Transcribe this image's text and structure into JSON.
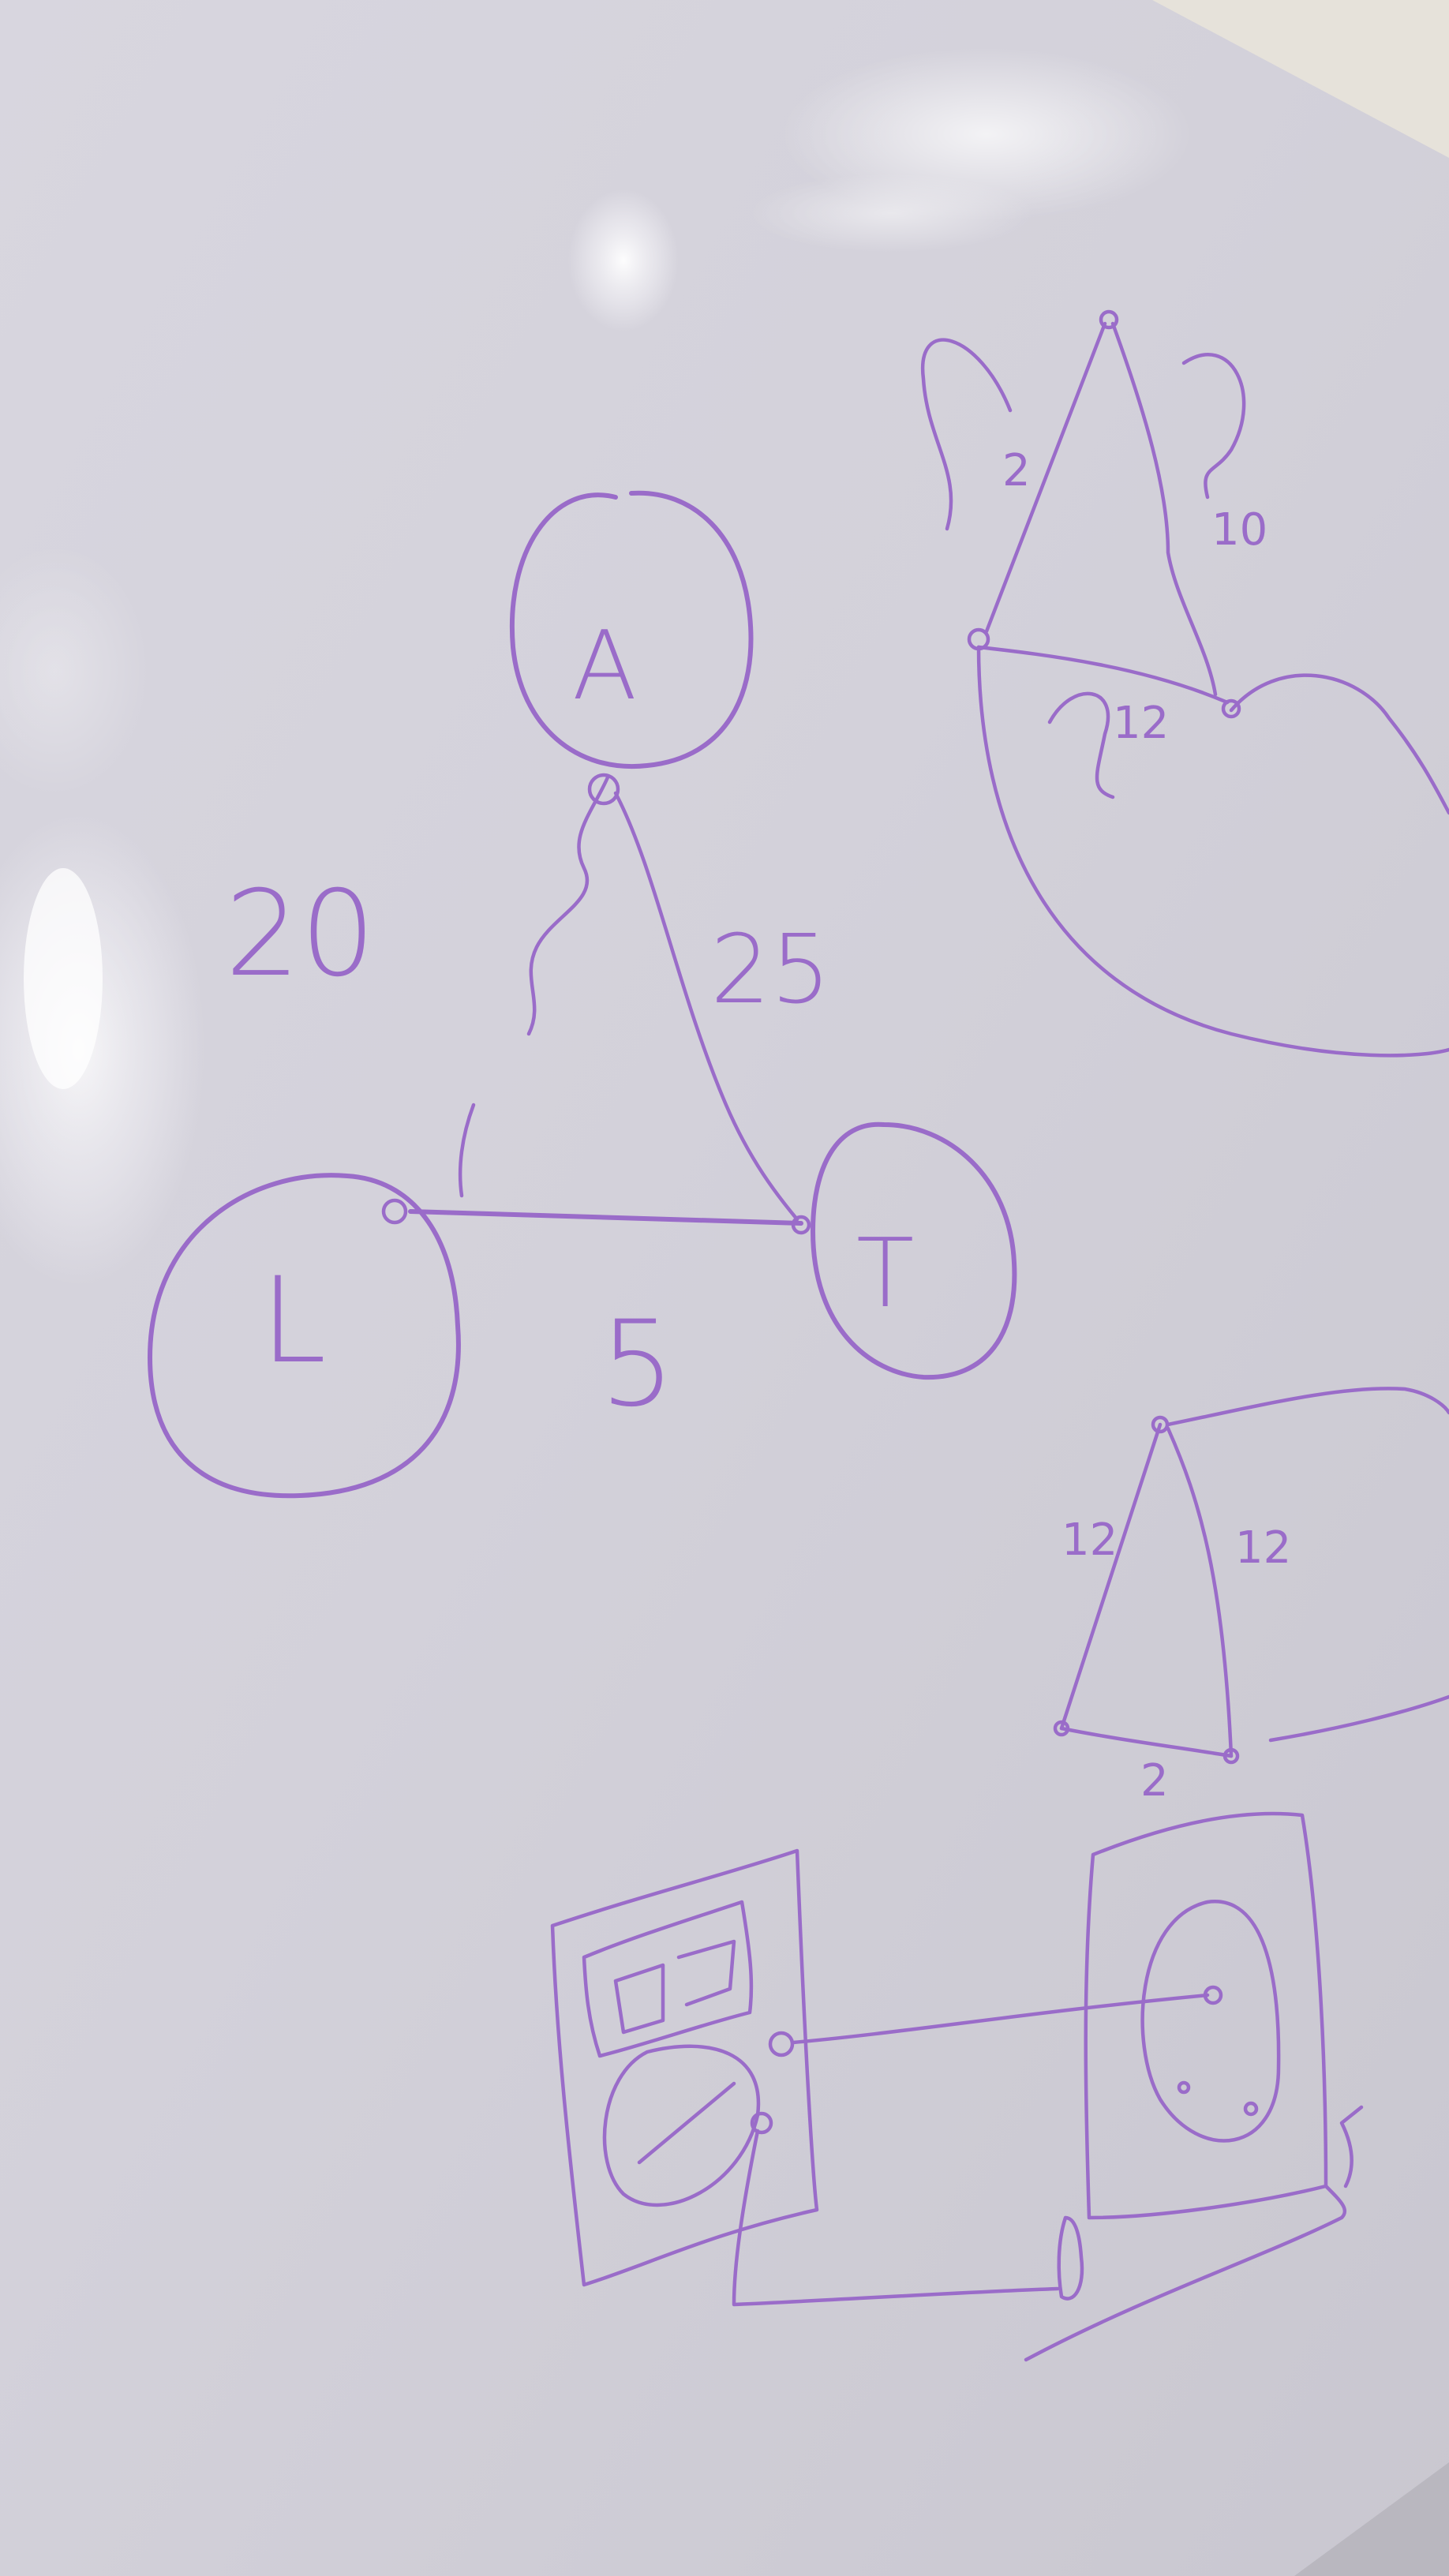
{
  "scene": {
    "subject": "whiteboard-sketch",
    "ink_color": "#9a6cc9",
    "board_color": "#d9d7e0"
  },
  "main_diagram": {
    "nodes": [
      {
        "id": "A",
        "label": "A"
      },
      {
        "id": "L",
        "label": "L"
      },
      {
        "id": "T",
        "label": "T"
      }
    ],
    "edge_labels": {
      "a_l": "20",
      "a_t": "25",
      "l_t": "5"
    }
  },
  "top_right_diagram": {
    "labels": [
      "2",
      "10",
      "12"
    ]
  },
  "mid_right_diagram": {
    "labels": [
      "12",
      "12",
      "2"
    ]
  }
}
